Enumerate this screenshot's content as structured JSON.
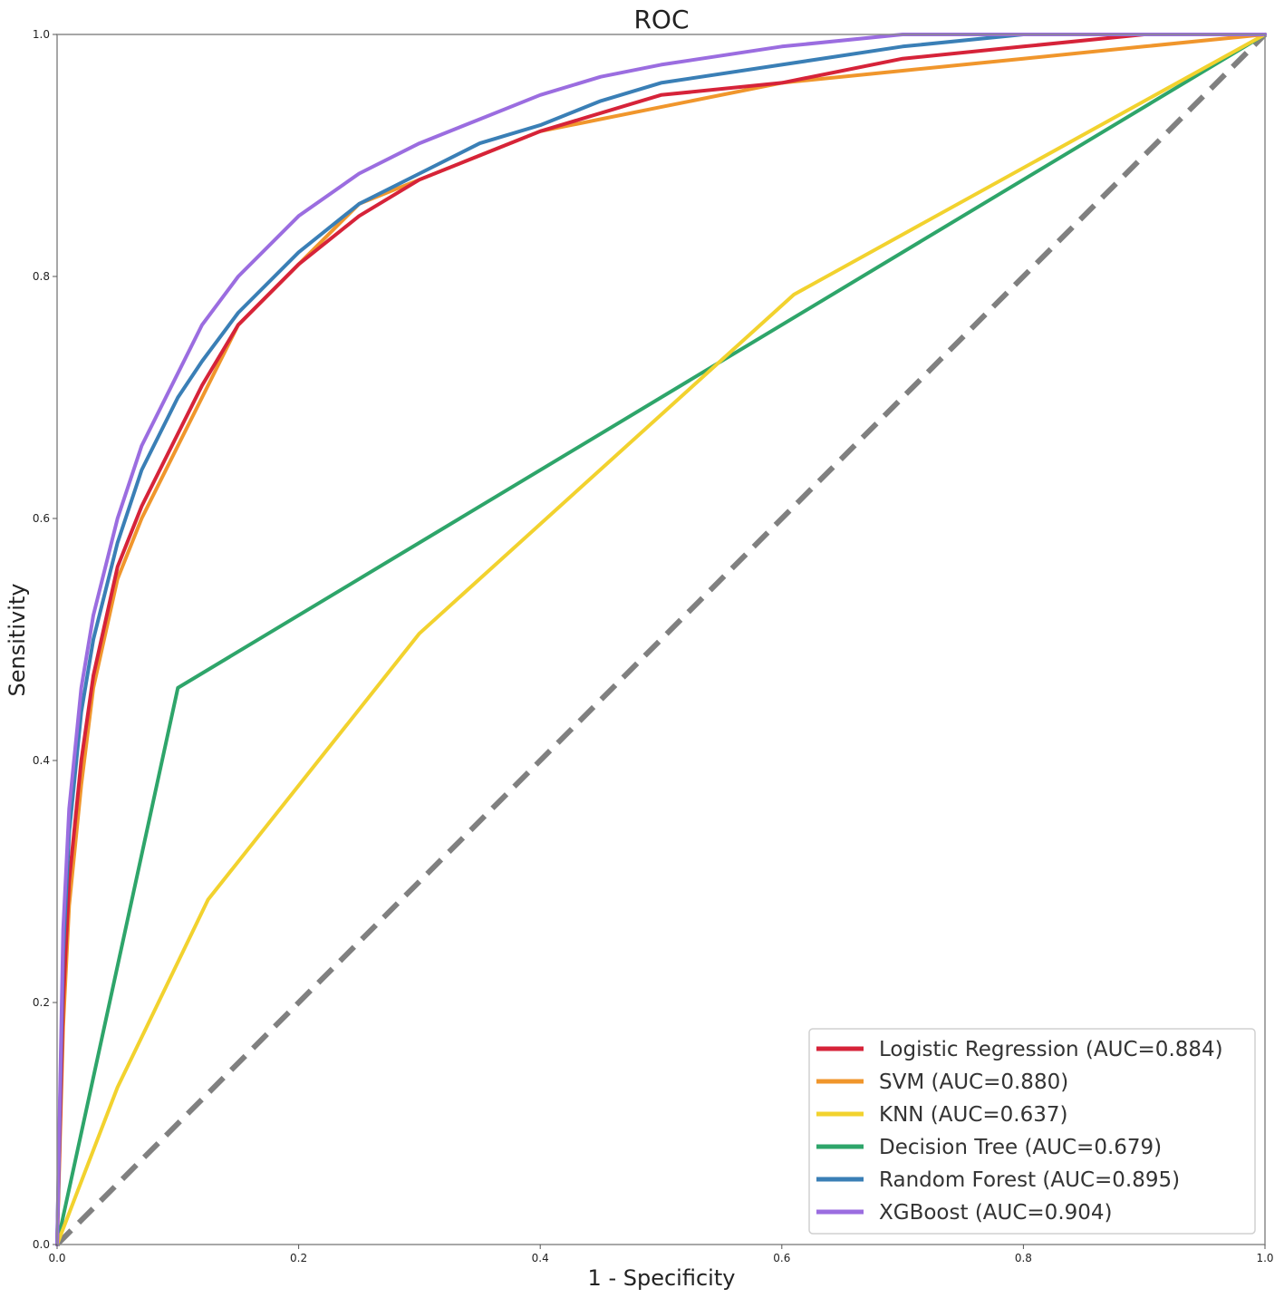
{
  "chart_data": {
    "type": "line",
    "title": "ROC",
    "xlabel": "1 - Specificity",
    "ylabel": "Sensitivity",
    "xlim": [
      0,
      1
    ],
    "ylim": [
      0,
      1
    ],
    "xticks": [
      "0.0",
      "0.2",
      "0.4",
      "0.6",
      "0.8",
      "1.0"
    ],
    "yticks": [
      "0.0",
      "0.2",
      "0.4",
      "0.6",
      "0.8",
      "1.0"
    ],
    "grid": false,
    "legend_position": "bottom-right",
    "reference_line": {
      "style": "dashed",
      "color": "#808080",
      "x": [
        0,
        1
      ],
      "y": [
        0,
        1
      ]
    },
    "series": [
      {
        "name": "Logistic Regression (AUC=0.884)",
        "color": "#d62339",
        "x": [
          0,
          0.005,
          0.01,
          0.02,
          0.03,
          0.05,
          0.07,
          0.1,
          0.12,
          0.15,
          0.2,
          0.25,
          0.3,
          0.35,
          0.4,
          0.5,
          0.6,
          0.7,
          0.8,
          0.9,
          1.0
        ],
        "y": [
          0,
          0.2,
          0.3,
          0.4,
          0.47,
          0.56,
          0.61,
          0.67,
          0.71,
          0.76,
          0.81,
          0.85,
          0.88,
          0.9,
          0.92,
          0.95,
          0.96,
          0.98,
          0.99,
          1.0,
          1.0
        ]
      },
      {
        "name": "SVM (AUC=0.880)",
        "color": "#f0962c",
        "x": [
          0,
          0.005,
          0.01,
          0.02,
          0.03,
          0.05,
          0.07,
          0.1,
          0.12,
          0.15,
          0.2,
          0.25,
          0.3,
          0.35,
          0.4,
          0.5,
          0.6,
          0.7,
          0.8,
          0.9,
          1.0
        ],
        "y": [
          0,
          0.18,
          0.28,
          0.38,
          0.46,
          0.55,
          0.6,
          0.66,
          0.7,
          0.76,
          0.81,
          0.86,
          0.88,
          0.9,
          0.92,
          0.94,
          0.96,
          0.97,
          0.98,
          0.99,
          1.0
        ]
      },
      {
        "name": "KNN (AUC=0.637)",
        "color": "#f2d22e",
        "x": [
          0,
          0.05,
          0.125,
          0.3,
          0.61,
          1.0
        ],
        "y": [
          0,
          0.13,
          0.285,
          0.505,
          0.785,
          1.0
        ]
      },
      {
        "name": "Decision Tree (AUC=0.679)",
        "color": "#2ea56a",
        "x": [
          0,
          0.1,
          1.0
        ],
        "y": [
          0,
          0.46,
          1.0
        ]
      },
      {
        "name": "Random Forest (AUC=0.895)",
        "color": "#3a7fb6",
        "x": [
          0,
          0.005,
          0.01,
          0.02,
          0.03,
          0.05,
          0.07,
          0.1,
          0.12,
          0.15,
          0.2,
          0.25,
          0.3,
          0.35,
          0.4,
          0.45,
          0.5,
          0.6,
          0.7,
          0.8,
          1.0
        ],
        "y": [
          0,
          0.24,
          0.34,
          0.44,
          0.5,
          0.58,
          0.64,
          0.7,
          0.73,
          0.77,
          0.82,
          0.86,
          0.885,
          0.91,
          0.925,
          0.945,
          0.96,
          0.975,
          0.99,
          1.0,
          1.0
        ]
      },
      {
        "name": "XGBoost (AUC=0.904)",
        "color": "#9b6de0",
        "x": [
          0,
          0.005,
          0.01,
          0.02,
          0.03,
          0.05,
          0.07,
          0.1,
          0.12,
          0.15,
          0.2,
          0.25,
          0.3,
          0.35,
          0.4,
          0.45,
          0.5,
          0.6,
          0.7,
          0.8,
          1.0
        ],
        "y": [
          0,
          0.26,
          0.36,
          0.46,
          0.52,
          0.6,
          0.66,
          0.72,
          0.76,
          0.8,
          0.85,
          0.885,
          0.91,
          0.93,
          0.95,
          0.965,
          0.975,
          0.99,
          1.0,
          1.0,
          1.0
        ]
      }
    ]
  }
}
